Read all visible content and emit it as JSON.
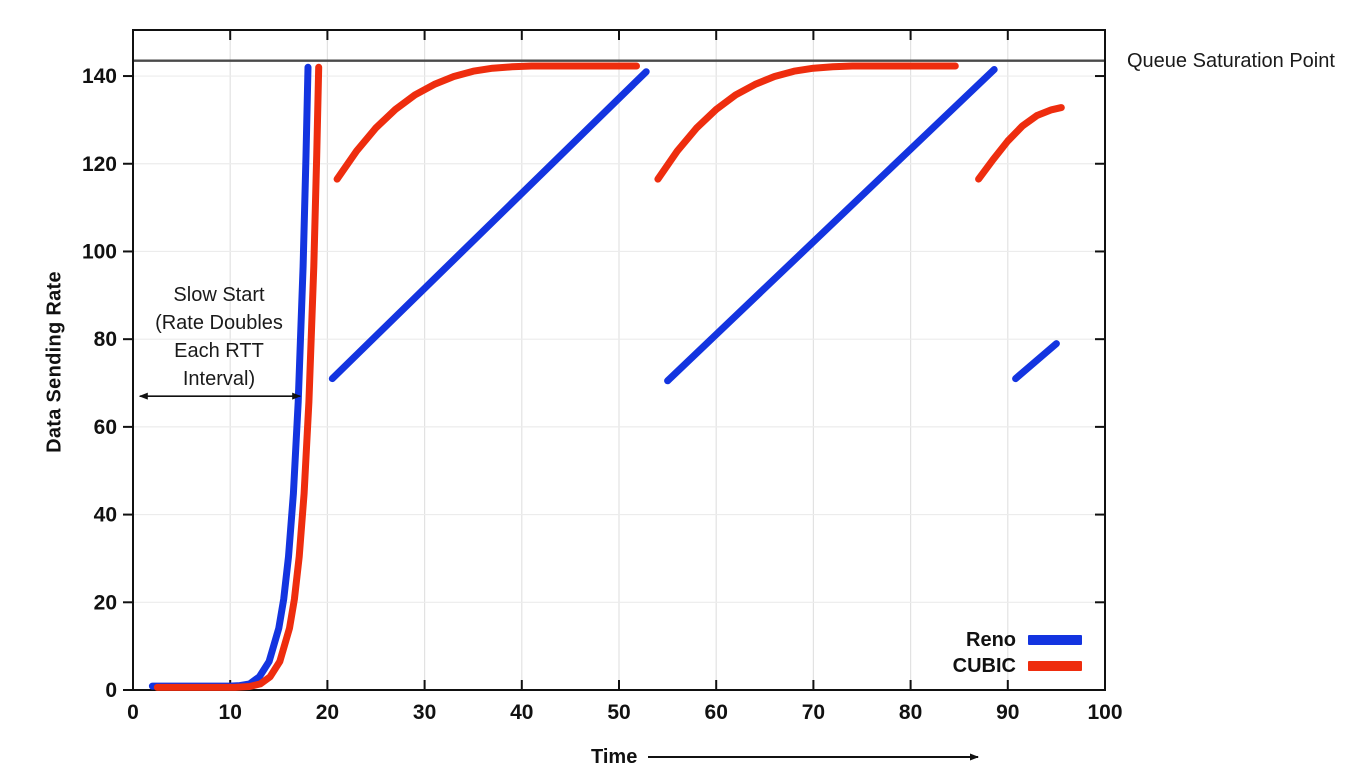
{
  "chart_data": {
    "type": "line",
    "title": "",
    "xlabel": "Time",
    "ylabel": "Data Sending Rate",
    "xlim": [
      0,
      100
    ],
    "ylim": [
      0,
      150.5
    ],
    "x_ticks": [
      0,
      10,
      20,
      30,
      40,
      50,
      60,
      70,
      80,
      90,
      100
    ],
    "y_ticks": [
      0,
      20,
      40,
      60,
      80,
      100,
      120,
      140
    ],
    "grid": true,
    "legend_position": "bottom-right",
    "queue_saturation": {
      "value": 143.5,
      "label": "Queue Saturation Point"
    },
    "annotation": {
      "lines": [
        "Slow Start",
        "(Rate Doubles",
        "Each RTT",
        "Interval)"
      ],
      "arrow_x": [
        0.7,
        17.2
      ],
      "arrow_y": 67
    },
    "legend": {
      "entries": [
        {
          "name": "Reno",
          "color": "#1334e0"
        },
        {
          "name": "CUBIC",
          "color": "#ee2d0e"
        }
      ]
    },
    "series": [
      {
        "name": "Reno",
        "color": "#1334e0",
        "segments": [
          [
            [
              2,
              0.9
            ],
            [
              5,
              0.9
            ],
            [
              8,
              0.9
            ],
            [
              10,
              0.9
            ],
            [
              11,
              1.0
            ],
            [
              12,
              1.4
            ],
            [
              13,
              3.0
            ],
            [
              14,
              6.5
            ],
            [
              15,
              14.1
            ],
            [
              15.5,
              20.7
            ],
            [
              16,
              30.4
            ],
            [
              16.5,
              44.8
            ],
            [
              17,
              65.7
            ],
            [
              17.5,
              96.6
            ],
            [
              17.8,
              121.8
            ],
            [
              18,
              142
            ]
          ],
          [
            [
              20.5,
              71
            ],
            [
              52.8,
              141
            ]
          ],
          [
            [
              55,
              70.5
            ],
            [
              88.6,
              141.5
            ]
          ],
          [
            [
              90.8,
              71
            ],
            [
              95,
              79
            ]
          ]
        ]
      },
      {
        "name": "CUBIC",
        "color": "#ee2d0e",
        "segments": [
          [
            [
              2.5,
              0.6
            ],
            [
              5,
              0.6
            ],
            [
              8,
              0.6
            ],
            [
              10.5,
              0.6
            ],
            [
              12,
              0.8
            ],
            [
              13.1,
              1.4
            ],
            [
              14.1,
              3.0
            ],
            [
              15.1,
              6.5
            ],
            [
              16.1,
              14.1
            ],
            [
              16.6,
              20.7
            ],
            [
              17.1,
              30.4
            ],
            [
              17.6,
              44.8
            ],
            [
              18.1,
              65.7
            ],
            [
              18.6,
              96.6
            ],
            [
              18.9,
              121.8
            ],
            [
              19.1,
              142
            ]
          ],
          [
            [
              21,
              116.5
            ],
            [
              23,
              122.9
            ],
            [
              25,
              128.2
            ],
            [
              27,
              132.4
            ],
            [
              29,
              135.7
            ],
            [
              31,
              138.1
            ],
            [
              33,
              139.9
            ],
            [
              35,
              141.1
            ],
            [
              37,
              141.8
            ],
            [
              39,
              142.1
            ],
            [
              41,
              142.3
            ],
            [
              44,
              142.3
            ],
            [
              48,
              142.3
            ],
            [
              51.8,
              142.3
            ]
          ],
          [
            [
              54,
              116.5
            ],
            [
              56,
              122.9
            ],
            [
              58,
              128.2
            ],
            [
              60,
              132.4
            ],
            [
              62,
              135.7
            ],
            [
              64,
              138.1
            ],
            [
              66,
              139.9
            ],
            [
              68,
              141.1
            ],
            [
              70,
              141.8
            ],
            [
              72,
              142.1
            ],
            [
              74,
              142.3
            ],
            [
              78,
              142.3
            ],
            [
              84.6,
              142.3
            ]
          ],
          [
            [
              87,
              116.5
            ],
            [
              88.5,
              121
            ],
            [
              90,
              125.2
            ],
            [
              91.5,
              128.6
            ],
            [
              93,
              131
            ],
            [
              94.5,
              132.3
            ],
            [
              95.5,
              132.8
            ]
          ]
        ]
      }
    ]
  }
}
